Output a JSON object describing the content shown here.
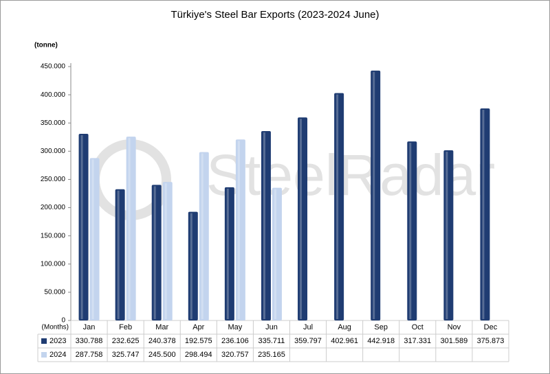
{
  "chart_data": {
    "type": "bar",
    "title": "Türkiye's Steel Bar Exports (2023-2024 June)",
    "y_label": "(tonne)",
    "x_label": "(Months)",
    "watermark": "SteelRadar",
    "categories": [
      "Jan",
      "Feb",
      "Mar",
      "Apr",
      "May",
      "Jun",
      "Jul",
      "Aug",
      "Sep",
      "Oct",
      "Nov",
      "Dec"
    ],
    "series": [
      {
        "name": "2023",
        "color": "#1f3c72",
        "values": [
          330788,
          232625,
          240378,
          192575,
          236106,
          335711,
          359797,
          402961,
          442918,
          317331,
          301589,
          375873
        ],
        "value_labels": [
          "330.788",
          "232.625",
          "240.378",
          "192.575",
          "236.106",
          "335.711",
          "359.797",
          "402.961",
          "442.918",
          "317.331",
          "301.589",
          "375.873"
        ]
      },
      {
        "name": "2024",
        "color": "#c3d4ee",
        "values": [
          287758,
          325747,
          245500,
          298494,
          320757,
          235165,
          null,
          null,
          null,
          null,
          null,
          null
        ],
        "value_labels": [
          "287.758",
          "325.747",
          "245.500",
          "298.494",
          "320.757",
          "235.165",
          null,
          null,
          null,
          null,
          null,
          null
        ]
      }
    ],
    "ylim": [
      0,
      450000
    ],
    "yticks": [
      0,
      {
        "value": 50000,
        "label": "50.000"
      },
      {
        "value": 100000,
        "label": "100.000"
      },
      {
        "value": 150000,
        "label": "150.000"
      },
      {
        "value": 200000,
        "label": "200.000"
      },
      {
        "value": 250000,
        "label": "250.000"
      },
      {
        "value": 300000,
        "label": "300.000"
      },
      {
        "value": 350000,
        "label": "350.000"
      },
      {
        "value": 400000,
        "label": "400.000"
      },
      {
        "value": 450000,
        "label": "450.000"
      }
    ],
    "grid": false
  }
}
